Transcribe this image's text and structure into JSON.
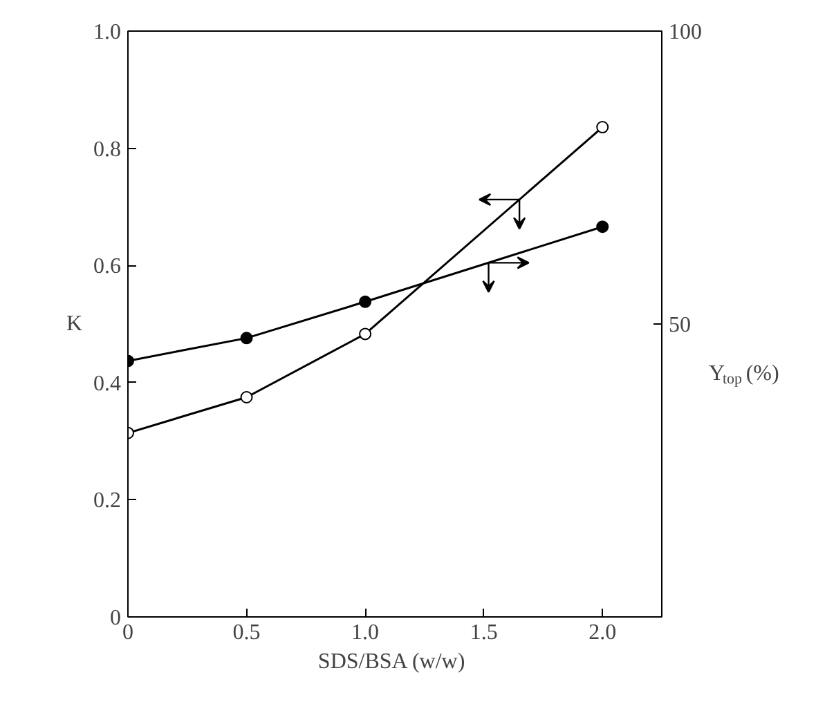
{
  "chart_data": {
    "type": "line",
    "xlabel": "SDS/BSA  (w/w)",
    "ylabel": "K",
    "y2label": "Y$_{top}$  (%)",
    "x": [
      0,
      0.5,
      1.0,
      2.0
    ],
    "series": [
      {
        "color": "#000000",
        "marker": "circle_open",
        "values": [
          0.314,
          0.375,
          0.483,
          0.836
        ]
      },
      {
        "color": "#000000",
        "marker": "circle",
        "axis": "y2",
        "values": [
          43.7,
          47.6,
          53.8,
          66.6
        ]
      }
    ],
    "xlim": [
      0,
      2.25
    ],
    "xticks": [
      {
        "value": 0,
        "label": "0"
      },
      0.5,
      {
        "value": 1.0,
        "label": "1.0"
      },
      1.5,
      {
        "value": 2.0,
        "label": "2.0"
      }
    ],
    "ylim": [
      0,
      1.0
    ],
    "yticks": [
      {
        "value": 0,
        "label": "0"
      },
      0.2,
      0.4,
      0.6,
      0.8,
      {
        "value": 1.0,
        "label": "1.0"
      }
    ],
    "y2lim": [
      0,
      100
    ],
    "y2ticks": [
      50,
      100
    ],
    "grid": false,
    "line_style": "solid"
  }
}
